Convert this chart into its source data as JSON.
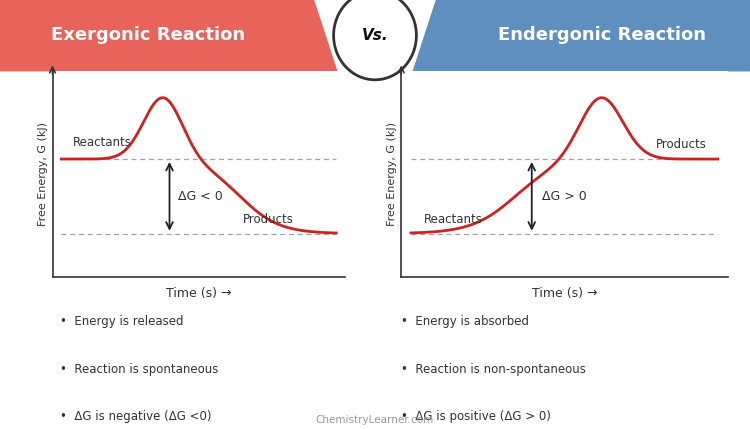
{
  "title_left": "Exergonic Reaction",
  "title_vs": "Vs.",
  "title_right": "Endergonic Reaction",
  "title_bg_left": "#e8635a",
  "title_bg_right": "#5e8fbe",
  "curve_color": "#cc2222",
  "dashed_color": "#999999",
  "ylabel": "Free Energy, G (kJ)",
  "xlabel": "Time (s) →",
  "reactant_level_exer": 0.6,
  "product_level_exer": 0.22,
  "peak_exer": 0.92,
  "reactant_level_ender": 0.22,
  "product_level_ender": 0.6,
  "peak_ender": 0.92,
  "bullet_left": [
    "Energy is released",
    "Reaction is spontaneous",
    "ΔG is negative (ΔG <0)"
  ],
  "bullet_right": [
    "Energy is absorbed",
    "Reaction is non-spontaneous",
    "ΔG is positive (ΔG > 0)"
  ],
  "watermark": "ChemistryLearner.com",
  "background_color": "#ffffff",
  "arrow_color": "#222222",
  "dg_label_left": "ΔG < 0",
  "dg_label_right": "ΔG > 0",
  "reactants_label_exer": "Reactants",
  "products_label_exer": "Products",
  "products_label_ender": "Products",
  "reactants_label_ender": "Reactants"
}
